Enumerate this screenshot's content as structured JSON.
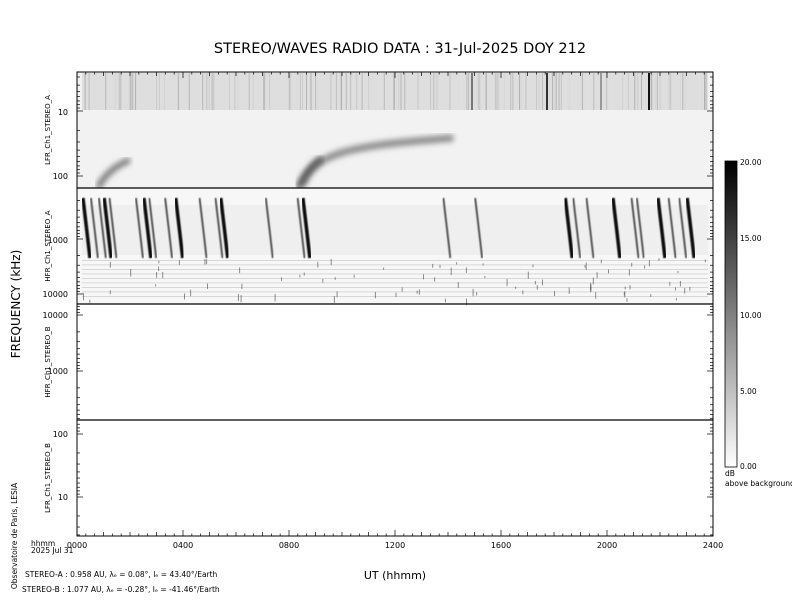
{
  "chart_data": {
    "type": "heatmap",
    "title": "STEREO/WAVES  RADIO  DATA : 31-Jul-2025  DOY 212",
    "ylabel": "FREQUENCY (kHz)",
    "xlabel": "UT (hhmm)",
    "x_ticks": [
      "0000",
      "0400",
      "0800",
      "1200",
      "1600",
      "2000",
      "2400"
    ],
    "x_corner_label": "hhmm",
    "x_date_label": "2025 Jul 31",
    "panels": [
      {
        "name": "LFR_Ch1_STEREO_A",
        "ticks": [
          "10",
          "100"
        ],
        "has_data": true
      },
      {
        "name": "HFR_Ch1_STEREO_A",
        "ticks": [
          "1000",
          "10000"
        ],
        "has_data": true
      },
      {
        "name": "HFR_Ch1_STEREO_B",
        "ticks": [
          "10000",
          "1000"
        ],
        "has_data": false
      },
      {
        "name": "LFR_Ch1_STEREO_B",
        "ticks": [
          "100",
          "10"
        ],
        "has_data": false
      }
    ],
    "colorbar": {
      "min": 0,
      "max": 20,
      "ticks": [
        "20.00",
        "15.00",
        "10.00",
        "5.00",
        "0.00"
      ],
      "unit": "dB",
      "unit_label": "above background"
    },
    "bursts_hours": [
      0.3,
      0.6,
      0.9,
      1.1,
      1.3,
      2.3,
      2.6,
      2.8,
      3.4,
      3.8,
      4.7,
      5.3,
      5.5,
      7.2,
      8.4,
      8.6,
      13.9,
      15.1,
      18.5,
      18.8,
      19.3,
      20.3,
      21.0,
      21.2,
      22.0,
      22.4,
      22.8,
      23.1
    ],
    "type_ii_feature": {
      "start_hour": 8.5,
      "end_hour": 14.2
    }
  },
  "credit": "Observatoire de Paris, LESIA",
  "ephemeris": [
    {
      "line": "STEREO-A : 0.958 AU, λₑ = 0.08°, lₑ = 43.40°/Earth"
    },
    {
      "line": "STEREO-B : 1.077 AU, λₑ = -0.28°, lₑ = -41.46°/Earth"
    }
  ]
}
